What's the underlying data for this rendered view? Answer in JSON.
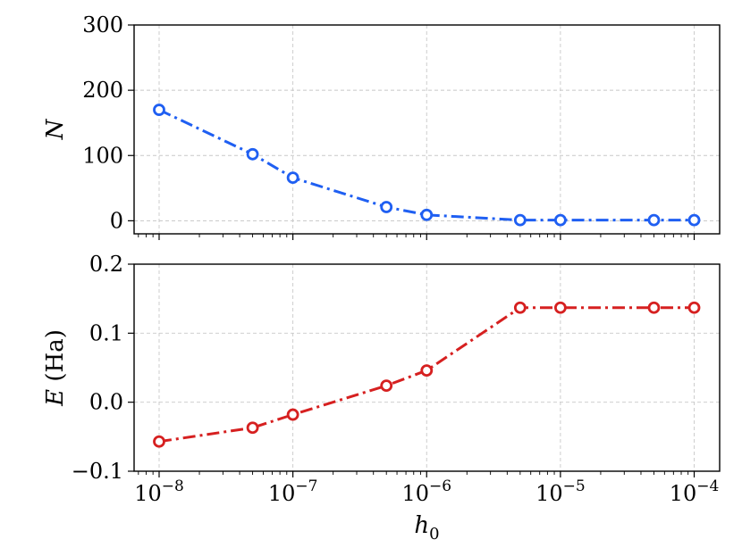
{
  "chart_data": [
    {
      "type": "line",
      "xscale": "log",
      "xlim": [
        6.5e-09,
        0.000155
      ],
      "ylim": [
        -20,
        300
      ],
      "yticks": [
        0,
        100,
        200,
        300
      ],
      "ytick_labels": [
        "0",
        "100",
        "200",
        "300"
      ],
      "ylabel": "N",
      "xlabel": "",
      "grid": true,
      "series": [
        {
          "color": "#1f5ff2",
          "linestyle": "dashdot",
          "marker": "open-circle",
          "x": [
            1e-08,
            5e-08,
            1e-07,
            5e-07,
            1e-06,
            5e-06,
            1e-05,
            5e-05,
            0.0001
          ],
          "y": [
            170,
            102,
            66,
            21,
            9,
            1,
            1,
            1,
            1
          ]
        }
      ]
    },
    {
      "type": "line",
      "xscale": "log",
      "xlim": [
        6.5e-09,
        0.000155
      ],
      "ylim": [
        -0.1,
        0.2
      ],
      "yticks": [
        -0.1,
        0.0,
        0.1,
        0.2
      ],
      "ytick_labels": [
        "−0.1",
        "0.0",
        "0.1",
        "0.2"
      ],
      "ylabel": "E (Ha)",
      "xlabel": "h0",
      "xticks": [
        1e-08,
        1e-07,
        1e-06,
        1e-05,
        0.0001
      ],
      "xtick_exponents": [
        "−8",
        "−7",
        "−6",
        "−5",
        "−4"
      ],
      "grid": true,
      "series": [
        {
          "color": "#d62020",
          "linestyle": "dashdot",
          "marker": "open-circle",
          "x": [
            1e-08,
            5e-08,
            1e-07,
            5e-07,
            1e-06,
            5e-06,
            1e-05,
            5e-05,
            0.0001
          ],
          "y": [
            -0.057,
            -0.037,
            -0.018,
            0.024,
            0.046,
            0.137,
            0.137,
            0.137,
            0.137
          ]
        }
      ]
    }
  ]
}
